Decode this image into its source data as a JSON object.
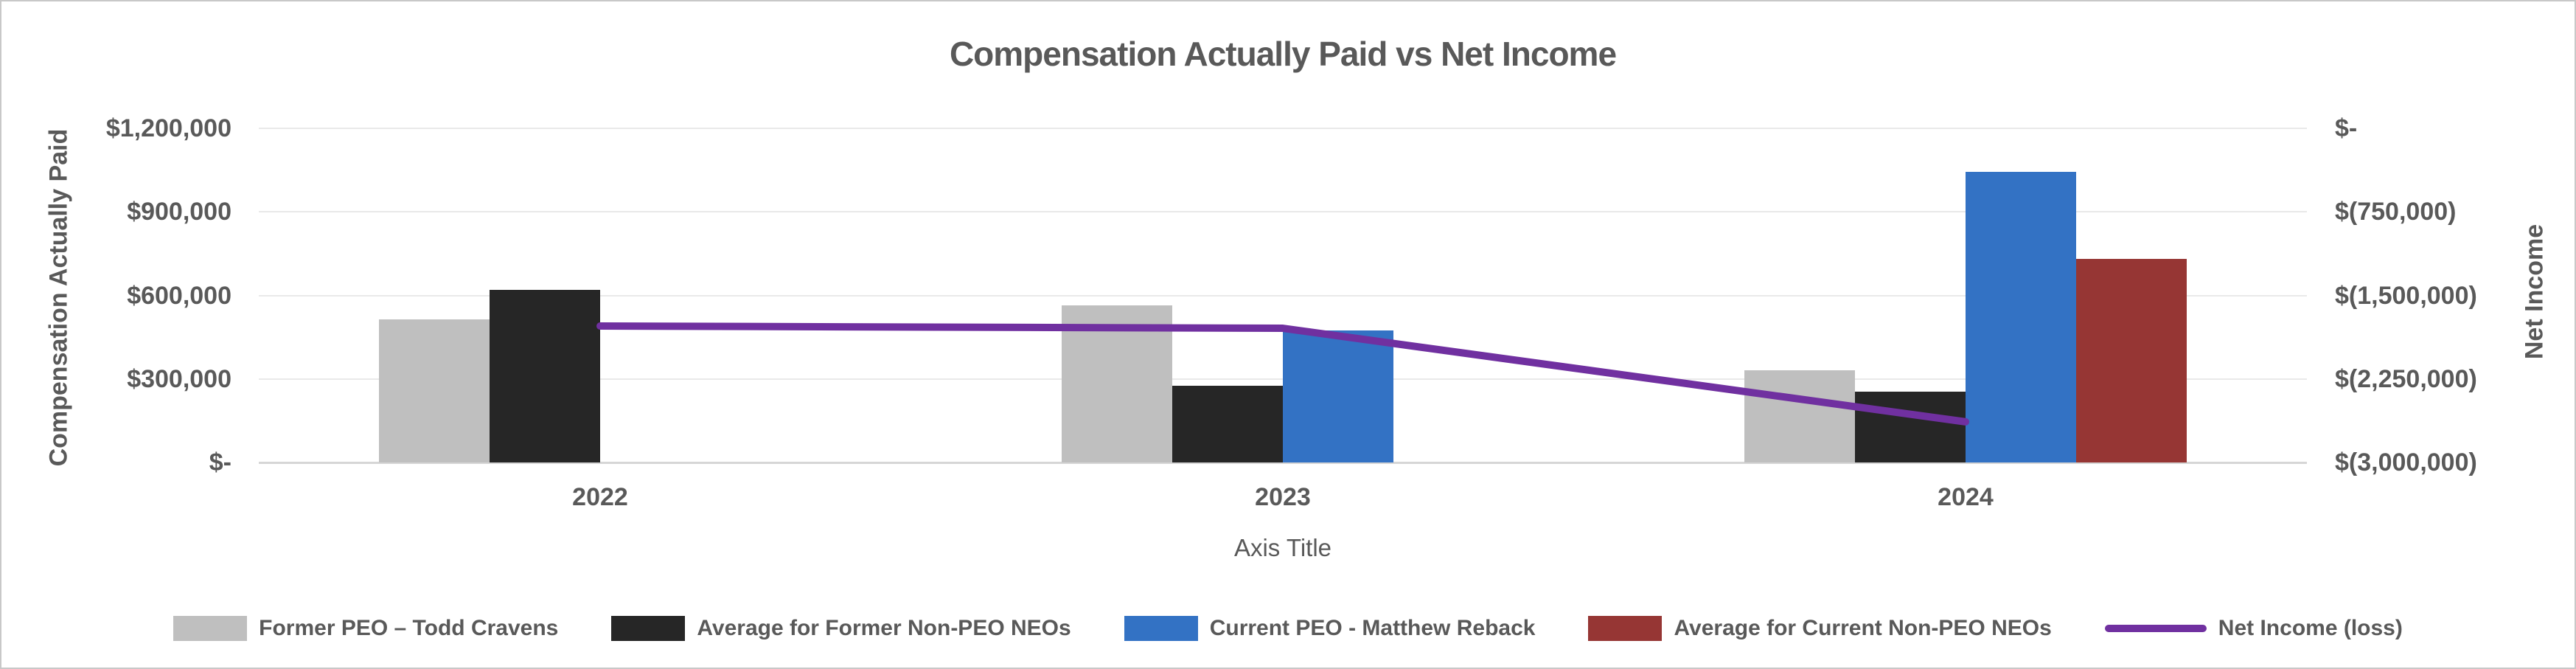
{
  "title": "Compensation Actually Paid vs Net Income",
  "axes": {
    "left": {
      "title": "Compensation Actually Paid",
      "ticks": [
        "$1,200,000",
        "$900,000",
        "$600,000",
        "$300,000",
        "$-"
      ]
    },
    "right": {
      "title": "Net Income",
      "ticks": [
        "$-",
        "$(750,000)",
        "$(1,500,000)",
        "$(2,250,000)",
        "$(3,000,000)"
      ]
    },
    "x": {
      "title": "Axis Title",
      "categories": [
        "2022",
        "2023",
        "2024"
      ]
    }
  },
  "legend": [
    {
      "label": "Former PEO – Todd Cravens",
      "type": "box",
      "color": "#bfbfbf"
    },
    {
      "label": "Average for Former Non-PEO NEOs",
      "type": "box",
      "color": "#262626"
    },
    {
      "label": "Current PEO  - Matthew Reback",
      "type": "box",
      "color": "#3372c4"
    },
    {
      "label": "Average for Current Non-PEO NEOs",
      "type": "box",
      "color": "#963634"
    },
    {
      "label": "Net Income (loss)",
      "type": "line",
      "color": "#7030a0"
    }
  ],
  "colors": {
    "text": "#595959",
    "gridline": "#e9e9e9",
    "axis_line": "#d6d6d6",
    "frame_border": "#c8c8c8",
    "series_gray": "#bfbfbf",
    "series_black": "#262626",
    "series_blue": "#3372c4",
    "series_red": "#963634",
    "series_purple": "#7030a0"
  },
  "chart_data": {
    "type": "bar",
    "subtype": "clustered-bar-with-line-combo",
    "title": "Compensation Actually Paid vs Net Income",
    "xlabel": "Axis Title",
    "categories": [
      "2022",
      "2023",
      "2024"
    ],
    "bar_axis": {
      "label": "Compensation Actually Paid",
      "min": 0,
      "max": 1200000,
      "tick_step": 300000,
      "side": "left"
    },
    "line_axis": {
      "label": "Net Income",
      "min": -3000000,
      "max": 0,
      "tick_step": 750000,
      "side": "right"
    },
    "grid": true,
    "legend_position": "bottom",
    "series": [
      {
        "name": "Former PEO – Todd Cravens",
        "type": "bar",
        "color": "#bfbfbf",
        "axis": "left",
        "values": [
          515000,
          565000,
          330000
        ]
      },
      {
        "name": "Average for Former Non-PEO NEOs",
        "type": "bar",
        "color": "#262626",
        "axis": "left",
        "values": [
          620000,
          275000,
          255000
        ]
      },
      {
        "name": "Current PEO  - Matthew Reback",
        "type": "bar",
        "color": "#3372c4",
        "axis": "left",
        "values": [
          null,
          475000,
          1045000
        ]
      },
      {
        "name": "Average for Current Non-PEO NEOs",
        "type": "bar",
        "color": "#963634",
        "axis": "left",
        "values": [
          null,
          null,
          730000
        ]
      },
      {
        "name": "Net Income (loss)",
        "type": "line",
        "color": "#7030a0",
        "axis": "right",
        "values": [
          -1775000,
          -1795000,
          -2635000
        ]
      }
    ]
  }
}
